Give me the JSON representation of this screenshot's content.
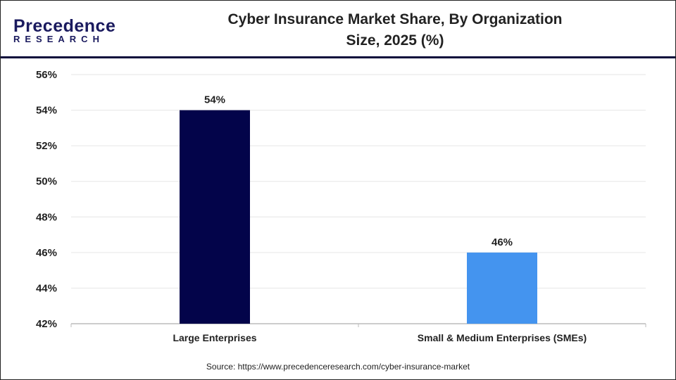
{
  "logo": {
    "line1": "Precedence",
    "line2": "RESEARCH"
  },
  "title": "Cyber Insurance Market Share, By Organization Size, 2025 (%)",
  "source": "Source: https://www.precedenceresearch.com/cyber-insurance-market",
  "chart_data": {
    "type": "bar",
    "title": "Cyber Insurance Market Share, By Organization Size, 2025 (%)",
    "categories": [
      "Large Enterprises",
      "Small & Medium Enterprises (SMEs)"
    ],
    "values": [
      54,
      46
    ],
    "data_labels": [
      "54%",
      "46%"
    ],
    "colors": [
      "#03044a",
      "#4494ef"
    ],
    "ylim": [
      42,
      56
    ],
    "yticks": [
      "42%",
      "44%",
      "46%",
      "48%",
      "50%",
      "52%",
      "54%",
      "56%"
    ],
    "grid": true,
    "xlabel": "",
    "ylabel": ""
  }
}
